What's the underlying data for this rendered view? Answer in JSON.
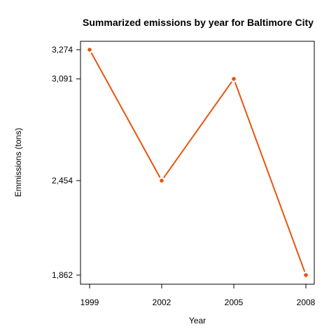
{
  "chart_data": {
    "type": "line",
    "title": "Summarized emissions by year for Baltimore City",
    "xlabel": "Year",
    "ylabel": "Emmissions (tons)",
    "x": [
      1999,
      2002,
      2005,
      2008
    ],
    "x_tick_labels": [
      "1999",
      "2002",
      "2005",
      "2008"
    ],
    "y_ticks": [
      1862,
      2454,
      3091,
      3274
    ],
    "y_tick_labels": [
      "1,862",
      "2,454",
      "3,091",
      "3,274"
    ],
    "ylim": [
      1862,
      3274
    ],
    "grid": false,
    "series": [
      {
        "values": [
          3274,
          2454,
          3091,
          1862
        ],
        "color": "#e8540f"
      }
    ]
  }
}
